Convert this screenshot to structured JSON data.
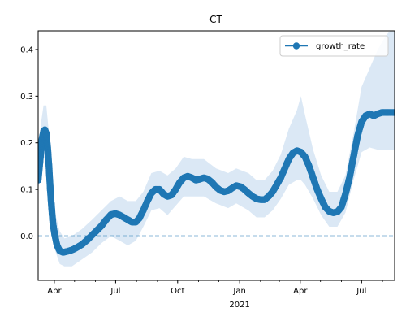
{
  "chart_data": {
    "type": "line",
    "title": "CT",
    "xlabel": "",
    "ylabel": "",
    "x_axis": "date",
    "xlim": [
      "2020-03-08",
      "2021-08-19"
    ],
    "ylim": [
      -0.095,
      0.44
    ],
    "grid": false,
    "legend": {
      "position": "top-right",
      "entries": [
        "growth_rate"
      ]
    },
    "x_major_ticks": [
      {
        "date": "2020-04-01",
        "label": "Apr",
        "sublabel": ""
      },
      {
        "date": "2020-07-01",
        "label": "Jul",
        "sublabel": ""
      },
      {
        "date": "2020-10-01",
        "label": "Oct",
        "sublabel": ""
      },
      {
        "date": "2021-01-01",
        "label": "Jan",
        "sublabel": "2021"
      },
      {
        "date": "2021-04-01",
        "label": "Apr",
        "sublabel": ""
      },
      {
        "date": "2021-07-01",
        "label": "Jul",
        "sublabel": ""
      }
    ],
    "x_minor_ticks": [
      "2020-05-01",
      "2020-06-01",
      "2020-08-01",
      "2020-09-01",
      "2020-11-01",
      "2020-12-01",
      "2021-02-01",
      "2021-03-01",
      "2021-05-01",
      "2021-06-01",
      "2021-08-01"
    ],
    "y_ticks": [
      0.0,
      0.1,
      0.2,
      0.3,
      0.4
    ],
    "y_tick_labels": [
      "0.0",
      "0.1",
      "0.2",
      "0.3",
      "0.4"
    ],
    "reference_line": {
      "y": 0.0,
      "style": "dashed",
      "color": "#1f77b4"
    },
    "colors": {
      "line": "#1f77b4",
      "band": "#dbe8f5"
    },
    "series": [
      {
        "name": "growth_rate",
        "marker": "circle",
        "points": [
          [
            "2020-03-08",
            0.12
          ],
          [
            "2020-03-10",
            0.15
          ],
          [
            "2020-03-12",
            0.18
          ],
          [
            "2020-03-14",
            0.21
          ],
          [
            "2020-03-16",
            0.225
          ],
          [
            "2020-03-18",
            0.228
          ],
          [
            "2020-03-20",
            0.22
          ],
          [
            "2020-03-22",
            0.19
          ],
          [
            "2020-03-24",
            0.15
          ],
          [
            "2020-03-26",
            0.1
          ],
          [
            "2020-03-28",
            0.06
          ],
          [
            "2020-03-30",
            0.025
          ],
          [
            "2020-04-02",
            0.0
          ],
          [
            "2020-04-05",
            -0.02
          ],
          [
            "2020-04-09",
            -0.032
          ],
          [
            "2020-04-14",
            -0.035
          ],
          [
            "2020-04-20",
            -0.033
          ],
          [
            "2020-04-27",
            -0.03
          ],
          [
            "2020-05-04",
            -0.025
          ],
          [
            "2020-05-12",
            -0.018
          ],
          [
            "2020-05-20",
            -0.008
          ],
          [
            "2020-05-27",
            0.002
          ],
          [
            "2020-06-03",
            0.012
          ],
          [
            "2020-06-10",
            0.022
          ],
          [
            "2020-06-17",
            0.035
          ],
          [
            "2020-06-24",
            0.046
          ],
          [
            "2020-07-01",
            0.048
          ],
          [
            "2020-07-07",
            0.045
          ],
          [
            "2020-07-13",
            0.04
          ],
          [
            "2020-07-19",
            0.035
          ],
          [
            "2020-07-25",
            0.03
          ],
          [
            "2020-07-31",
            0.03
          ],
          [
            "2020-08-05",
            0.038
          ],
          [
            "2020-08-11",
            0.055
          ],
          [
            "2020-08-17",
            0.075
          ],
          [
            "2020-08-23",
            0.092
          ],
          [
            "2020-08-29",
            0.1
          ],
          [
            "2020-09-04",
            0.1
          ],
          [
            "2020-09-10",
            0.09
          ],
          [
            "2020-09-16",
            0.085
          ],
          [
            "2020-09-22",
            0.088
          ],
          [
            "2020-09-28",
            0.1
          ],
          [
            "2020-10-04",
            0.115
          ],
          [
            "2020-10-10",
            0.125
          ],
          [
            "2020-10-16",
            0.128
          ],
          [
            "2020-10-22",
            0.125
          ],
          [
            "2020-10-28",
            0.12
          ],
          [
            "2020-11-03",
            0.122
          ],
          [
            "2020-11-09",
            0.125
          ],
          [
            "2020-11-15",
            0.122
          ],
          [
            "2020-11-21",
            0.115
          ],
          [
            "2020-11-27",
            0.105
          ],
          [
            "2020-12-03",
            0.098
          ],
          [
            "2020-12-09",
            0.095
          ],
          [
            "2020-12-15",
            0.097
          ],
          [
            "2020-12-21",
            0.103
          ],
          [
            "2020-12-27",
            0.108
          ],
          [
            "2021-01-02",
            0.106
          ],
          [
            "2021-01-08",
            0.1
          ],
          [
            "2021-01-14",
            0.092
          ],
          [
            "2021-01-20",
            0.085
          ],
          [
            "2021-01-26",
            0.08
          ],
          [
            "2021-02-01",
            0.078
          ],
          [
            "2021-02-07",
            0.078
          ],
          [
            "2021-02-13",
            0.085
          ],
          [
            "2021-02-19",
            0.095
          ],
          [
            "2021-02-25",
            0.11
          ],
          [
            "2021-03-03",
            0.125
          ],
          [
            "2021-03-09",
            0.145
          ],
          [
            "2021-03-15",
            0.165
          ],
          [
            "2021-03-21",
            0.178
          ],
          [
            "2021-03-27",
            0.183
          ],
          [
            "2021-04-02",
            0.18
          ],
          [
            "2021-04-08",
            0.17
          ],
          [
            "2021-04-14",
            0.15
          ],
          [
            "2021-04-20",
            0.125
          ],
          [
            "2021-04-26",
            0.1
          ],
          [
            "2021-05-02",
            0.08
          ],
          [
            "2021-05-08",
            0.062
          ],
          [
            "2021-05-14",
            0.053
          ],
          [
            "2021-05-20",
            0.05
          ],
          [
            "2021-05-26",
            0.052
          ],
          [
            "2021-06-01",
            0.062
          ],
          [
            "2021-06-07",
            0.09
          ],
          [
            "2021-06-13",
            0.125
          ],
          [
            "2021-06-19",
            0.17
          ],
          [
            "2021-06-25",
            0.215
          ],
          [
            "2021-07-01",
            0.245
          ],
          [
            "2021-07-07",
            0.258
          ],
          [
            "2021-07-13",
            0.262
          ],
          [
            "2021-07-19",
            0.258
          ],
          [
            "2021-07-25",
            0.262
          ],
          [
            "2021-07-31",
            0.265
          ],
          [
            "2021-08-06",
            0.265
          ],
          [
            "2021-08-12",
            0.265
          ],
          [
            "2021-08-19",
            0.265
          ]
        ],
        "band": [
          [
            "2020-03-08",
            0.1,
            0.16
          ],
          [
            "2020-03-12",
            0.14,
            0.24
          ],
          [
            "2020-03-16",
            0.17,
            0.28
          ],
          [
            "2020-03-20",
            0.16,
            0.28
          ],
          [
            "2020-03-24",
            0.1,
            0.22
          ],
          [
            "2020-03-28",
            0.02,
            0.13
          ],
          [
            "2020-04-02",
            -0.03,
            0.05
          ],
          [
            "2020-04-09",
            -0.06,
            0.01
          ],
          [
            "2020-04-16",
            -0.065,
            -0.005
          ],
          [
            "2020-04-27",
            -0.065,
            0.0
          ],
          [
            "2020-05-12",
            -0.05,
            0.015
          ],
          [
            "2020-05-27",
            -0.035,
            0.035
          ],
          [
            "2020-06-10",
            -0.015,
            0.055
          ],
          [
            "2020-06-24",
            0.0,
            0.075
          ],
          [
            "2020-07-07",
            -0.01,
            0.085
          ],
          [
            "2020-07-19",
            -0.02,
            0.075
          ],
          [
            "2020-07-31",
            -0.01,
            0.075
          ],
          [
            "2020-08-11",
            0.02,
            0.095
          ],
          [
            "2020-08-23",
            0.055,
            0.135
          ],
          [
            "2020-09-04",
            0.06,
            0.14
          ],
          [
            "2020-09-16",
            0.045,
            0.13
          ],
          [
            "2020-09-28",
            0.065,
            0.145
          ],
          [
            "2020-10-10",
            0.085,
            0.17
          ],
          [
            "2020-10-22",
            0.085,
            0.165
          ],
          [
            "2020-11-09",
            0.085,
            0.165
          ],
          [
            "2020-11-27",
            0.07,
            0.145
          ],
          [
            "2020-12-15",
            0.06,
            0.135
          ],
          [
            "2020-12-27",
            0.07,
            0.145
          ],
          [
            "2021-01-14",
            0.055,
            0.135
          ],
          [
            "2021-01-26",
            0.04,
            0.12
          ],
          [
            "2021-02-07",
            0.04,
            0.12
          ],
          [
            "2021-02-19",
            0.055,
            0.14
          ],
          [
            "2021-03-03",
            0.08,
            0.175
          ],
          [
            "2021-03-15",
            0.11,
            0.23
          ],
          [
            "2021-03-27",
            0.12,
            0.27
          ],
          [
            "2021-04-02",
            0.12,
            0.3
          ],
          [
            "2021-04-08",
            0.11,
            0.26
          ],
          [
            "2021-04-20",
            0.08,
            0.185
          ],
          [
            "2021-05-02",
            0.045,
            0.13
          ],
          [
            "2021-05-14",
            0.02,
            0.095
          ],
          [
            "2021-05-26",
            0.02,
            0.095
          ],
          [
            "2021-06-07",
            0.05,
            0.13
          ],
          [
            "2021-06-19",
            0.12,
            0.22
          ],
          [
            "2021-07-01",
            0.18,
            0.32
          ],
          [
            "2021-07-13",
            0.19,
            0.36
          ],
          [
            "2021-07-25",
            0.185,
            0.4
          ],
          [
            "2021-08-06",
            0.185,
            0.43
          ],
          [
            "2021-08-19",
            0.185,
            0.45
          ]
        ]
      }
    ]
  }
}
